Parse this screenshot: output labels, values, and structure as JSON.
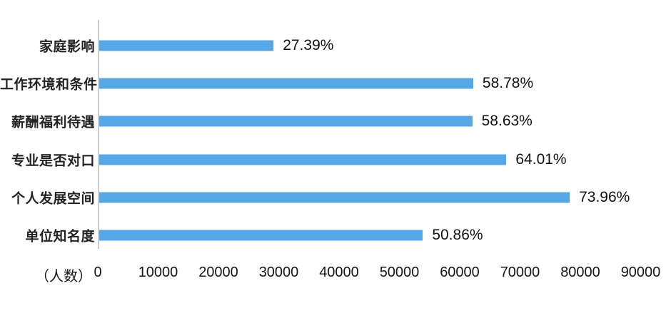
{
  "chart_data": {
    "type": "bar",
    "orientation": "horizontal",
    "title": "",
    "xlabel": "（人数）",
    "ylabel": "",
    "categories": [
      "家庭影响",
      "工作环境和条件",
      "薪酬福利待遇",
      "专业是否对口",
      "个人发展空间",
      "单位知名度"
    ],
    "series": [
      {
        "name": "人数",
        "values": [
          28900,
          62000,
          61850,
          67500,
          78000,
          53650
        ],
        "data_labels": [
          "27.39%",
          "58.78%",
          "58.63%",
          "64.01%",
          "73.96%",
          "50.86%"
        ]
      }
    ],
    "xlim": [
      0,
      90000
    ],
    "x_ticks": [
      "0",
      "10000",
      "20000",
      "30000",
      "40000",
      "50000",
      "60000",
      "70000",
      "80000",
      "90000"
    ],
    "grid": false,
    "legend": false,
    "bar_color": "#55A8E5",
    "axis_line_color": "#cbcbcb",
    "text_color": "#151515"
  }
}
